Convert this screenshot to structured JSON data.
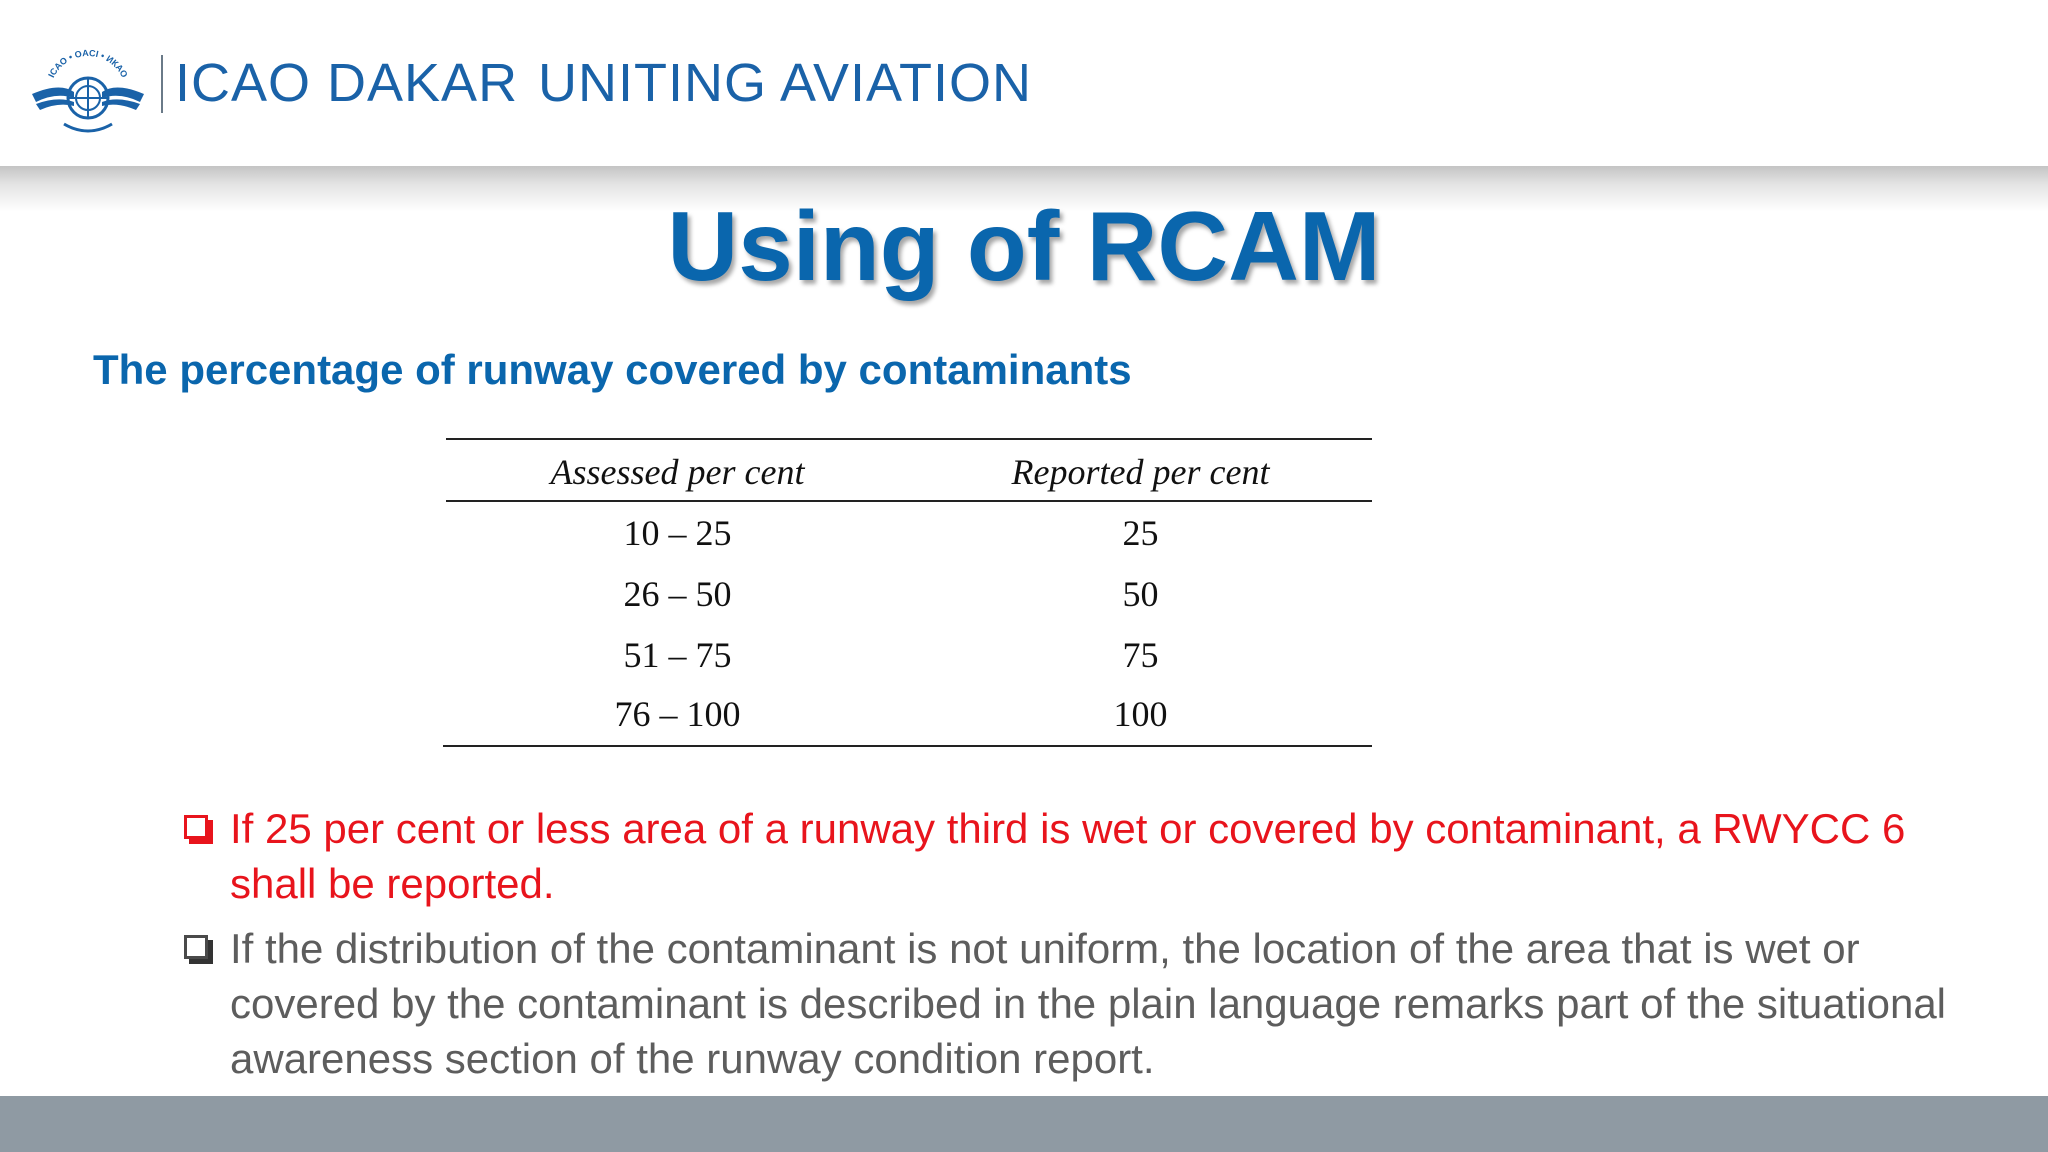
{
  "header": {
    "org_name": "ICAO  DAKAR",
    "tagline": "UNITING AVIATION",
    "logo_text": "ICAO • OACI • ИКАО"
  },
  "slide": {
    "title": "Using of RCAM",
    "subtitle": "The percentage of runway covered by contaminants"
  },
  "table": {
    "columns": [
      "Assessed per cent",
      "Reported per cent"
    ],
    "rows": [
      [
        "10 – 25",
        "25"
      ],
      [
        "26 – 50",
        "50"
      ],
      [
        "51 – 75",
        "75"
      ],
      [
        "76 – 100",
        "100"
      ]
    ]
  },
  "bullets": [
    "If 25 per cent or less area of a runway third is wet or covered by contaminant, a RWYCC 6 shall be reported.",
    "If the distribution of the contaminant is not uniform, the location of the area that is wet or covered by the contaminant is described in the plain language remarks part of the situational awareness section of the runway condition report."
  ],
  "colors": {
    "brand_blue": "#0a66ad",
    "alert_red": "#e8141c",
    "body_gray": "#5d5d5d",
    "footer_gray": "#8f9aa3"
  }
}
